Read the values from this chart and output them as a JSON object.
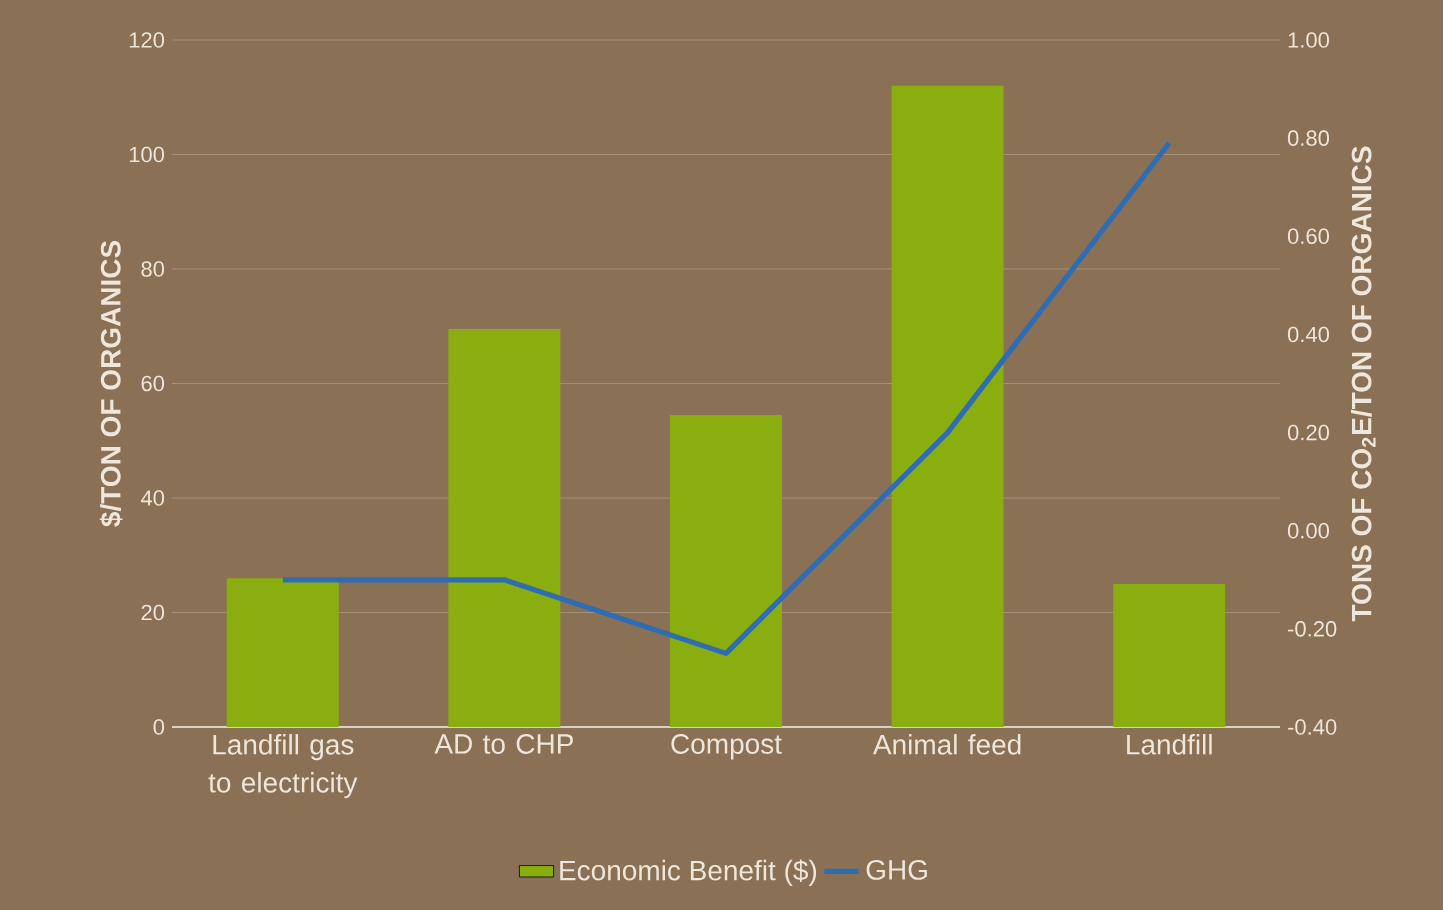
{
  "chart_data": {
    "type": "bar",
    "categories": [
      "Landfill gas to electricity",
      "AD to CHP",
      "Compost",
      "Animal feed",
      "Landfill"
    ],
    "series": [
      {
        "name": "Economic Benefit ($)",
        "color": "#8aae10",
        "values": [
          26,
          69.5,
          54.5,
          112,
          25
        ]
      },
      {
        "name": "GHG",
        "type": "line",
        "axis": "y2",
        "color": "#2e6db4",
        "values": [
          -0.1,
          -0.1,
          -0.25,
          0.2,
          0.79
        ]
      }
    ],
    "ylabel": "$/TON OF ORGANICS",
    "y2label": "TONS OF CO$_{2}$E/TON OF ORGANICS",
    "ylim": [
      0,
      120
    ],
    "yticks": [
      0,
      20,
      40,
      60,
      80,
      100,
      120
    ],
    "y2lim": [
      -0.4,
      1.0
    ],
    "y2ticks": [
      {
        "value": -0.4,
        "label": "-0.40"
      },
      {
        "value": -0.2,
        "label": "-0.20"
      },
      {
        "value": 0,
        "label": "0.00"
      },
      {
        "value": 0.2,
        "label": "0.20"
      },
      {
        "value": 0.4,
        "label": "0.40"
      },
      {
        "value": 0.6,
        "label": "0.60"
      },
      {
        "value": 0.8,
        "label": "0.80"
      },
      {
        "value": 1.0,
        "label": "1.00"
      }
    ],
    "grid": "y",
    "legend": "bottom",
    "marker": "none"
  }
}
